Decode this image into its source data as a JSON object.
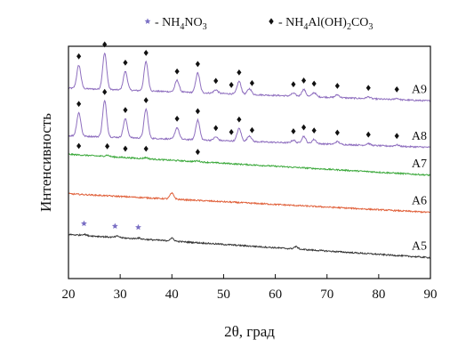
{
  "chart_data": {
    "type": "line",
    "xlabel": "2θ, град",
    "ylabel": "Интенсивность",
    "xlim": [
      20,
      90
    ],
    "xticks": [
      20,
      30,
      40,
      50,
      60,
      70,
      80,
      90
    ],
    "grid": false,
    "legend": {
      "placement": "top",
      "entries": [
        {
          "marker": "star",
          "color": "#7a6fc4",
          "prefix": "- NH",
          "sub1": "4",
          "mid": "NO",
          "sub2": "3"
        },
        {
          "marker": "diamond",
          "color": "#111111",
          "prefix": "- NH",
          "sub1": "4",
          "mid": "Al(OH)",
          "sub2": "2",
          "tail": "CO",
          "sub3": "3"
        }
      ]
    },
    "series": [
      {
        "name": "A9",
        "color": "#8f6fbf",
        "baseline": [
          0.82,
          0.765
        ],
        "peaks": [
          [
            22,
            0.1
          ],
          [
            27,
            0.155
          ],
          [
            31,
            0.08
          ],
          [
            35,
            0.125
          ],
          [
            41,
            0.05
          ],
          [
            45,
            0.085
          ],
          [
            48.5,
            0.015
          ],
          [
            53,
            0.055
          ],
          [
            55,
            0.025
          ],
          [
            63.5,
            0.012
          ],
          [
            65.5,
            0.03
          ],
          [
            67.5,
            0.018
          ],
          [
            72,
            0.012
          ],
          [
            78,
            0.008
          ],
          [
            83.5,
            0.006
          ]
        ],
        "markers": {
          "type": "diamond",
          "x": [
            22,
            27,
            31,
            35,
            41,
            45,
            48.5,
            51.5,
            53,
            55.5,
            63.5,
            65.5,
            67.5,
            72,
            78,
            83.5
          ]
        }
      },
      {
        "name": "A8",
        "color": "#8f6fbf",
        "baseline": [
          0.615,
          0.565
        ],
        "peaks": [
          [
            22,
            0.1
          ],
          [
            27,
            0.155
          ],
          [
            31,
            0.08
          ],
          [
            35,
            0.125
          ],
          [
            41,
            0.05
          ],
          [
            45,
            0.085
          ],
          [
            48.5,
            0.015
          ],
          [
            53,
            0.055
          ],
          [
            55,
            0.025
          ],
          [
            63.5,
            0.012
          ],
          [
            65.5,
            0.03
          ],
          [
            67.5,
            0.018
          ],
          [
            72,
            0.012
          ],
          [
            78,
            0.008
          ],
          [
            83.5,
            0.006
          ]
        ],
        "markers": {
          "type": "diamond",
          "x": [
            22,
            27,
            31,
            35,
            41,
            45,
            48.5,
            51.5,
            53,
            55.5,
            63.5,
            65.5,
            67.5,
            72,
            78,
            83.5
          ]
        }
      },
      {
        "name": "A7",
        "color": "#3aa83a",
        "baseline": [
          0.535,
          0.445
        ],
        "peaks": [
          [
            27.5,
            0.006
          ],
          [
            35,
            0.005
          ],
          [
            45,
            0.004
          ]
        ],
        "markers": {
          "type": "diamond",
          "x": [
            22,
            27.5,
            31,
            35,
            45
          ]
        }
      },
      {
        "name": "A6",
        "color": "#e0603a",
        "baseline": [
          0.365,
          0.285
        ],
        "peaks": [
          [
            40,
            0.025
          ]
        ],
        "markers": null
      },
      {
        "name": "A5",
        "color": "#333333",
        "baseline": [
          0.19,
          0.09
        ],
        "peaks": [
          [
            23,
            0.005
          ],
          [
            29.5,
            0.006
          ],
          [
            33.5,
            0.004
          ],
          [
            40,
            0.012
          ],
          [
            64,
            0.01
          ]
        ],
        "markers": {
          "type": "star",
          "x": [
            23,
            29,
            33.5
          ]
        }
      }
    ]
  }
}
